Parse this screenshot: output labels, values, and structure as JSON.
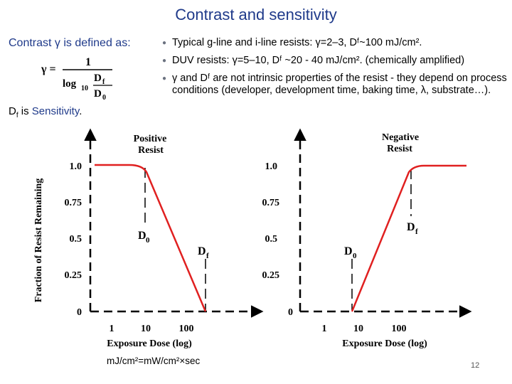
{
  "title": "Contrast and sensitivity",
  "definition": {
    "prefix": "Contrast γ is defined as:",
    "formula_lhs": "γ =",
    "formula_num": "1",
    "formula_log": "log",
    "formula_base": "10",
    "formula_top": "D",
    "formula_top_sub": "f",
    "formula_bot": "D",
    "formula_bot_sub": "0",
    "sensitivity_d": "D",
    "sensitivity_sub": "f",
    "sensitivity_text": " is ",
    "sensitivity_word": "Sensitivity",
    "sensitivity_end": "."
  },
  "bullets": [
    "Typical g-line and i-line resists: γ=2–3, Dᶠ~100 mJ/cm².",
    "DUV resists: γ=5–10, Dᶠ ~20 - 40 mJ/cm². (chemically amplified)",
    "γ and Dᶠ are not intrinsic properties of the resist - they depend on process conditions (developer, development time, baking time, λ, substrate…)."
  ],
  "plot": {
    "ylabel": "Fraction of Resist Remaining",
    "xlabel": "Exposure Dose (log)",
    "y_ticks": [
      "1.0",
      "0.75",
      "0.5",
      "0.25",
      "0"
    ],
    "x_ticks": [
      "1",
      "10",
      "100"
    ],
    "positive_title": [
      "Positive",
      "Resist"
    ],
    "negative_title": [
      "Negative",
      "Resist"
    ],
    "d0": "D",
    "d0_sub": "0",
    "df": "D",
    "df_sub": "f",
    "curve_color": "#e02020"
  },
  "units_note": "mJ/cm²=mW/cm²×sec",
  "page_number": "12"
}
